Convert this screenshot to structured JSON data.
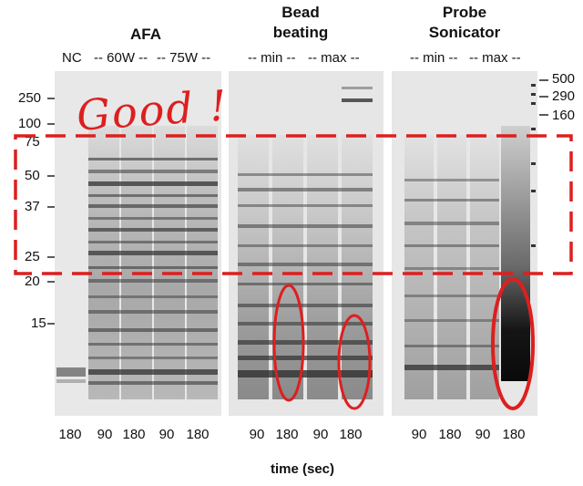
{
  "groups": {
    "afa": "AFA",
    "bead_line1": "Bead",
    "bead_line2": "beating",
    "probe_line1": "Probe",
    "probe_line2": "Sonicator"
  },
  "subheaders": {
    "nc": "NC",
    "afa_60w": "-- 60W --",
    "afa_75w": "-- 75W --",
    "bead_min": "-- min --",
    "bead_max": "-- max --",
    "probe_min": "-- min --",
    "probe_max": "-- max --"
  },
  "ladder_left": [
    "250",
    "100",
    "75",
    "50",
    "37",
    "25",
    "20",
    "15"
  ],
  "ladder_right": [
    "500",
    "290",
    "160"
  ],
  "annotation": "Good !",
  "time_labels": {
    "afa": [
      "180",
      "90",
      "180",
      "90",
      "180"
    ],
    "bead": [
      "90",
      "180",
      "90",
      "180"
    ],
    "probe": [
      "90",
      "180",
      "90",
      "180"
    ]
  },
  "x_axis_label": "time (sec)",
  "colors": {
    "annotation": "#dd1f1f",
    "gel": "#e9e9e9",
    "band": "#303030"
  }
}
